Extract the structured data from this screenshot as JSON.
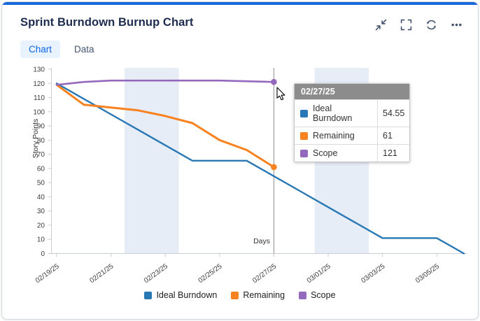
{
  "card": {
    "title": "Sprint Burndown Burnup Chart",
    "accent_color": "#1868db"
  },
  "toolbar": {
    "buttons": [
      {
        "name": "collapse",
        "icon": "collapse-arrows-icon"
      },
      {
        "name": "fullscreen",
        "icon": "fullscreen-corners-icon"
      },
      {
        "name": "refresh",
        "icon": "refresh-icon"
      },
      {
        "name": "more-options",
        "icon": "ellipsis-icon"
      }
    ]
  },
  "tabs": [
    {
      "label": "Chart",
      "active": true
    },
    {
      "label": "Data",
      "active": false
    }
  ],
  "tab_style": {
    "active_color": "#0c66e4",
    "active_bg": "#e9f2ff"
  },
  "tooltip": {
    "date": "02/27/25",
    "rows": [
      {
        "label": "Ideal Burndown",
        "value": "54.55"
      },
      {
        "label": "Remaining",
        "value": "61"
      },
      {
        "label": "Scope",
        "value": "121"
      }
    ]
  },
  "chart_data": {
    "type": "line",
    "title": "",
    "xlabel": "Days",
    "ylabel": "Story Points",
    "ylim": [
      0,
      130
    ],
    "y_tick_step": 10,
    "x_start_date": "02/19/25",
    "x_tick_days": [
      0,
      2,
      4,
      6,
      8,
      10,
      12,
      14
    ],
    "x_tick_labels": [
      "02/19/25",
      "02/21/25",
      "02/23/25",
      "02/25/25",
      "02/27/25",
      "03/01/25",
      "03/03/25",
      "03/05/25"
    ],
    "weekend_band_color": "#e7edf7",
    "weekend_bands": [
      {
        "from": 2.5,
        "to": 4.5
      },
      {
        "from": 9.5,
        "to": 11.5
      }
    ],
    "cursor_day": 8,
    "legend_position": "bottom",
    "series": [
      {
        "name": "Ideal Burndown",
        "color": "#2878b5",
        "end_marker": false,
        "values": [
          120,
          109.09,
          98.18,
          87.27,
          76.36,
          65.45,
          65.45,
          65.45,
          54.55,
          43.64,
          32.73,
          21.82,
          10.91,
          10.91,
          10.91,
          0
        ]
      },
      {
        "name": "Remaining",
        "color": "#f8821f",
        "end_marker": true,
        "values": [
          119,
          105,
          103,
          101,
          97,
          92,
          80,
          73,
          61
        ]
      },
      {
        "name": "Scope",
        "color": "#9469bd",
        "end_marker": true,
        "values": [
          119,
          121,
          122,
          122,
          122,
          122,
          122,
          121.5,
          121
        ]
      }
    ]
  }
}
